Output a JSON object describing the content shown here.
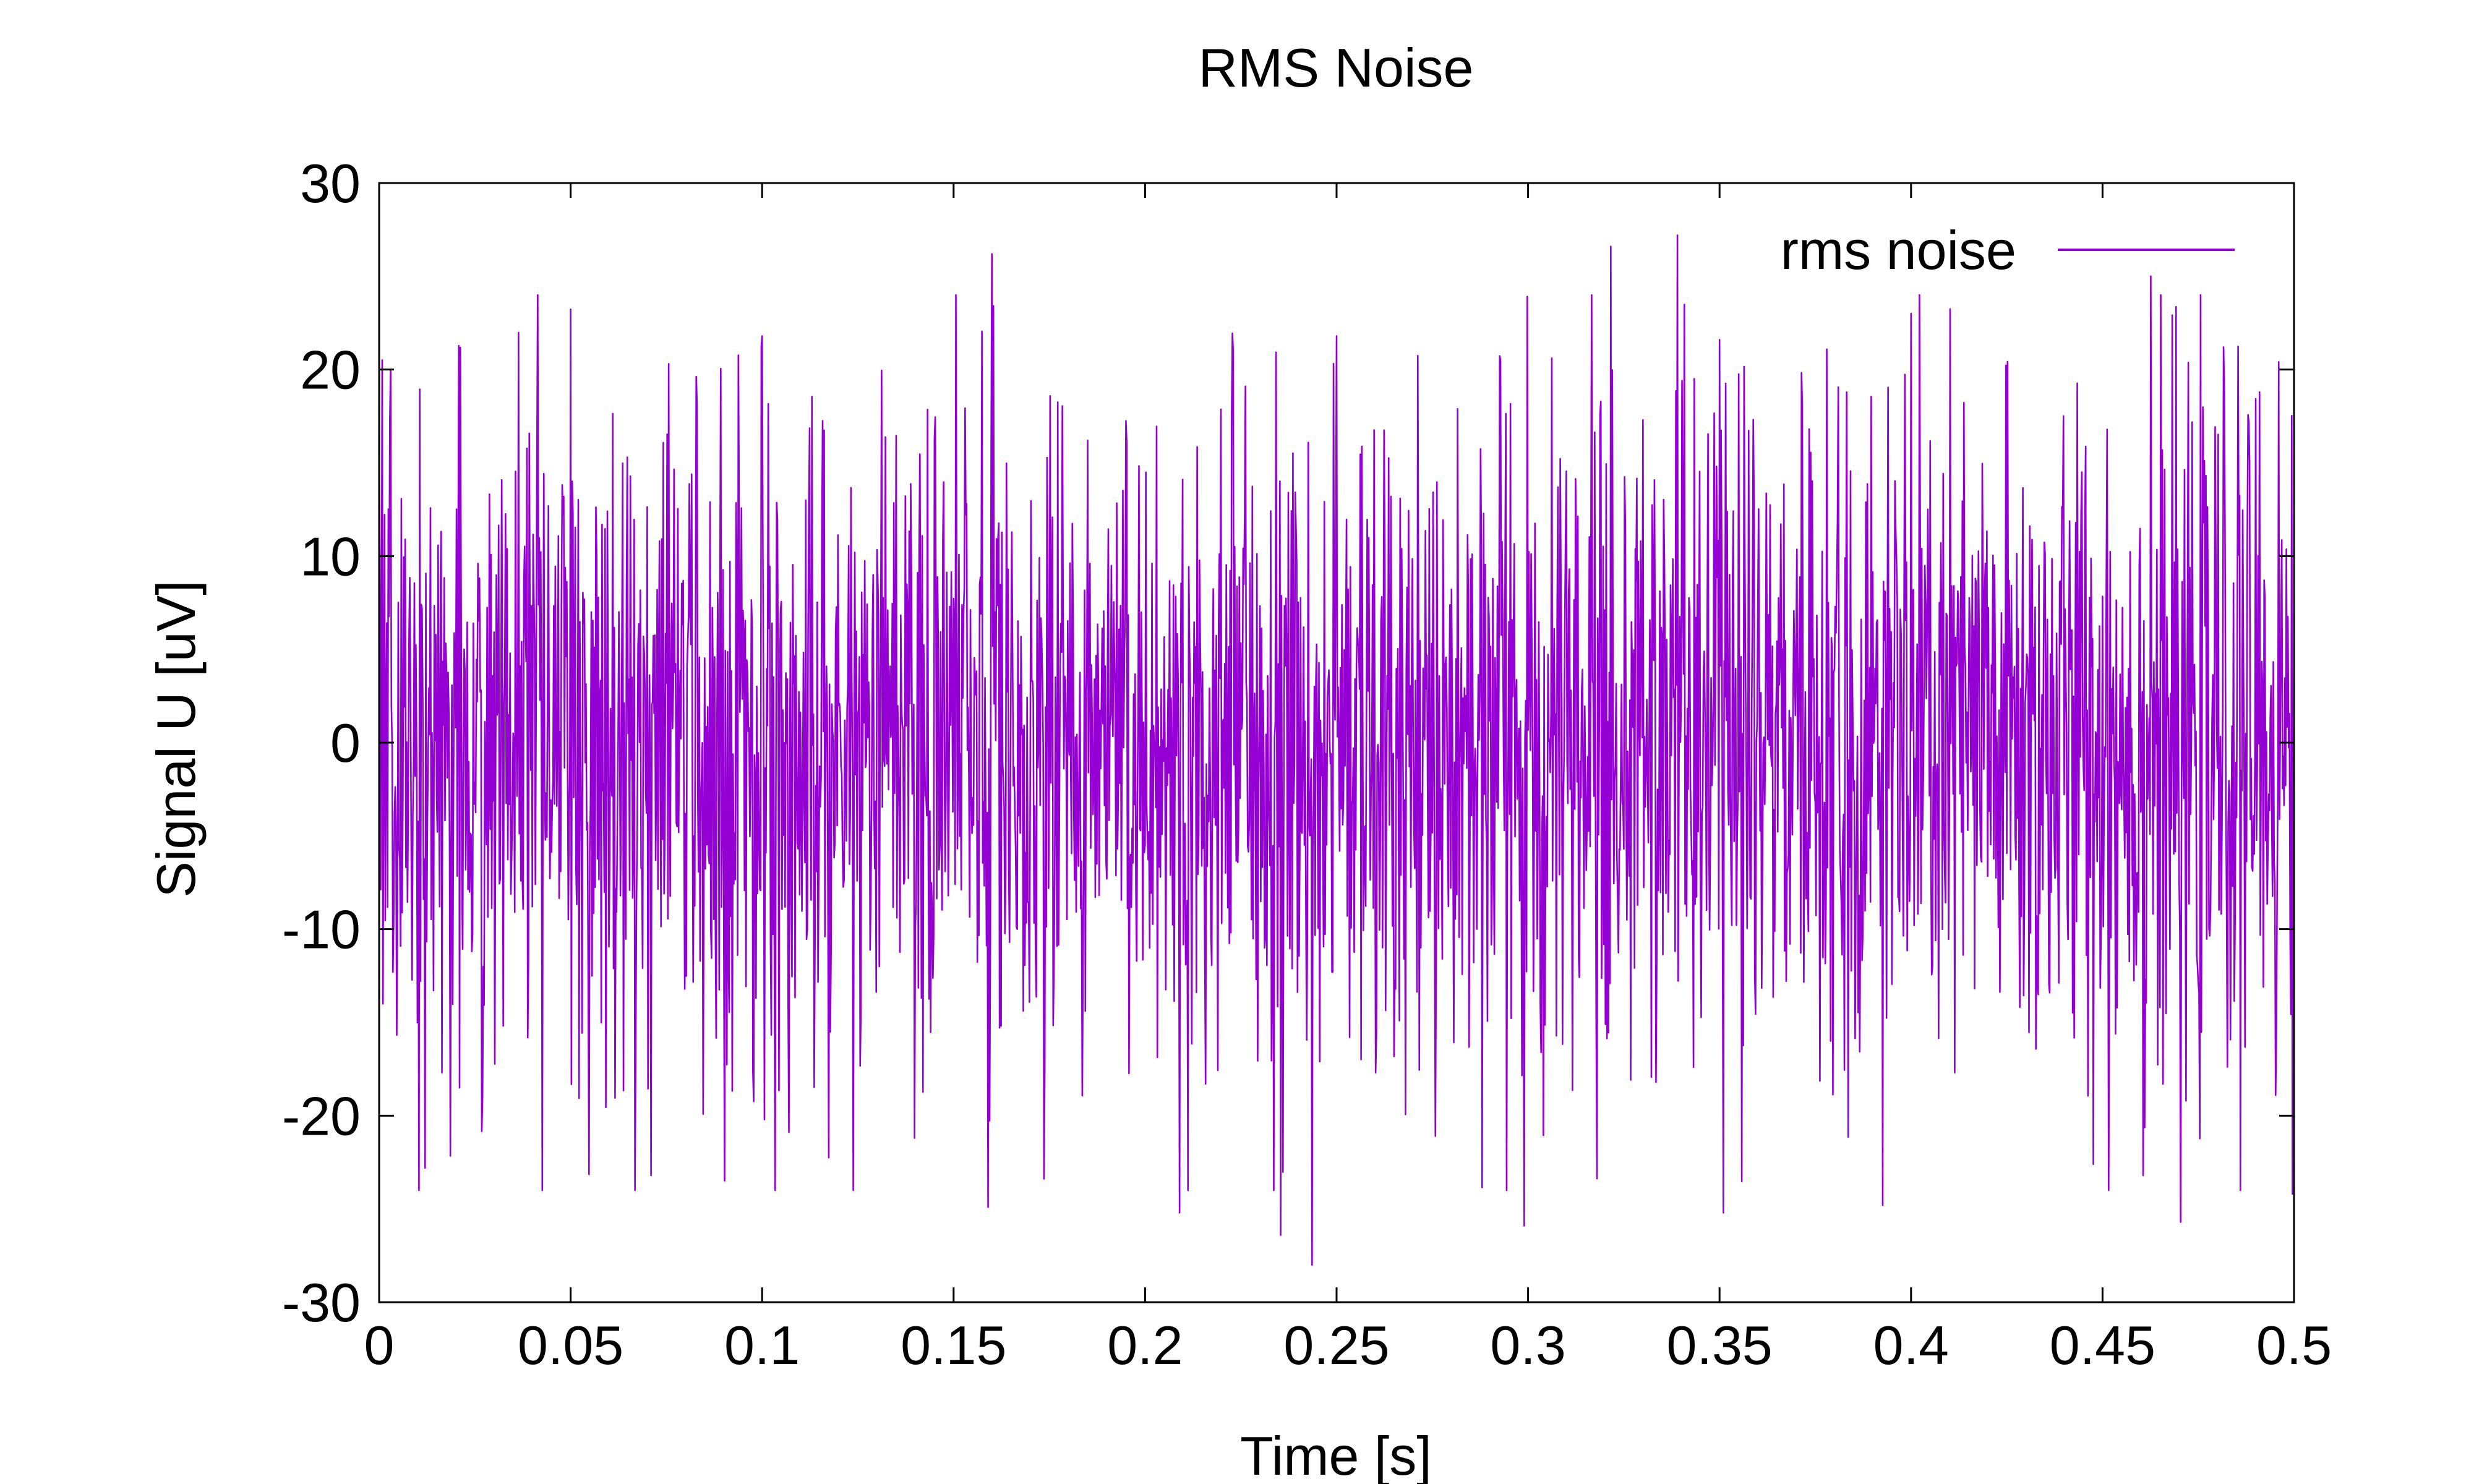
{
  "chart_data": {
    "type": "line",
    "title": "RMS Noise",
    "xlabel": "Time [s]",
    "ylabel": "Signal U [uV]",
    "xlim": [
      0,
      0.5
    ],
    "ylim": [
      -30,
      30
    ],
    "x_ticks": [
      {
        "value": 0,
        "label": "0"
      },
      {
        "value": 0.05,
        "label": "0.05"
      },
      {
        "value": 0.1,
        "label": "0.1"
      },
      {
        "value": 0.15,
        "label": "0.15"
      },
      {
        "value": 0.2,
        "label": "0.2"
      },
      {
        "value": 0.25,
        "label": "0.25"
      },
      {
        "value": 0.3,
        "label": "0.3"
      },
      {
        "value": 0.35,
        "label": "0.35"
      },
      {
        "value": 0.4,
        "label": "0.4"
      },
      {
        "value": 0.45,
        "label": "0.45"
      },
      {
        "value": 0.5,
        "label": "0.5"
      }
    ],
    "y_ticks": [
      {
        "value": 30,
        "label": "30"
      },
      {
        "value": 20,
        "label": "20"
      },
      {
        "value": 10,
        "label": "10"
      },
      {
        "value": 0,
        "label": "0"
      },
      {
        "value": -10,
        "label": "-10"
      },
      {
        "value": -20,
        "label": "-20"
      },
      {
        "value": -30,
        "label": "-30"
      }
    ],
    "grid": false,
    "legend_position": "top-right",
    "series": [
      {
        "name": "rms noise",
        "color": "#9400d3",
        "x_start": 0,
        "x_step": 0.0002,
        "n_points": 2501,
        "rms": 9.0,
        "seed": 7,
        "notable_points": [
          {
            "x": 0.0,
            "y": 15
          },
          {
            "x": 0.001,
            "y": -14
          },
          {
            "x": 0.003,
            "y": 20
          },
          {
            "x": 0.012,
            "y": -22.8
          },
          {
            "x": 0.071,
            "y": -23.2
          },
          {
            "x": 0.1,
            "y": 21.8
          },
          {
            "x": 0.16,
            "y": 26.2
          },
          {
            "x": 0.159,
            "y": -24.9
          },
          {
            "x": 0.209,
            "y": -25.2
          },
          {
            "x": 0.223,
            "y": 21
          },
          {
            "x": 0.2355,
            "y": -26.4
          },
          {
            "x": 0.2435,
            "y": -28
          },
          {
            "x": 0.25,
            "y": 21.8
          },
          {
            "x": 0.299,
            "y": -25.9
          },
          {
            "x": 0.3215,
            "y": 26.6
          },
          {
            "x": 0.339,
            "y": 27.2
          },
          {
            "x": 0.35,
            "y": 21.6
          },
          {
            "x": 0.351,
            "y": -25.2
          },
          {
            "x": 0.4,
            "y": 23
          },
          {
            "x": 0.3925,
            "y": -24.8
          },
          {
            "x": 0.4625,
            "y": 25
          },
          {
            "x": 0.4605,
            "y": -23.2
          },
          {
            "x": 0.4705,
            "y": -25.7
          },
          {
            "x": 0.4995,
            "y": -24.2
          }
        ]
      }
    ]
  }
}
